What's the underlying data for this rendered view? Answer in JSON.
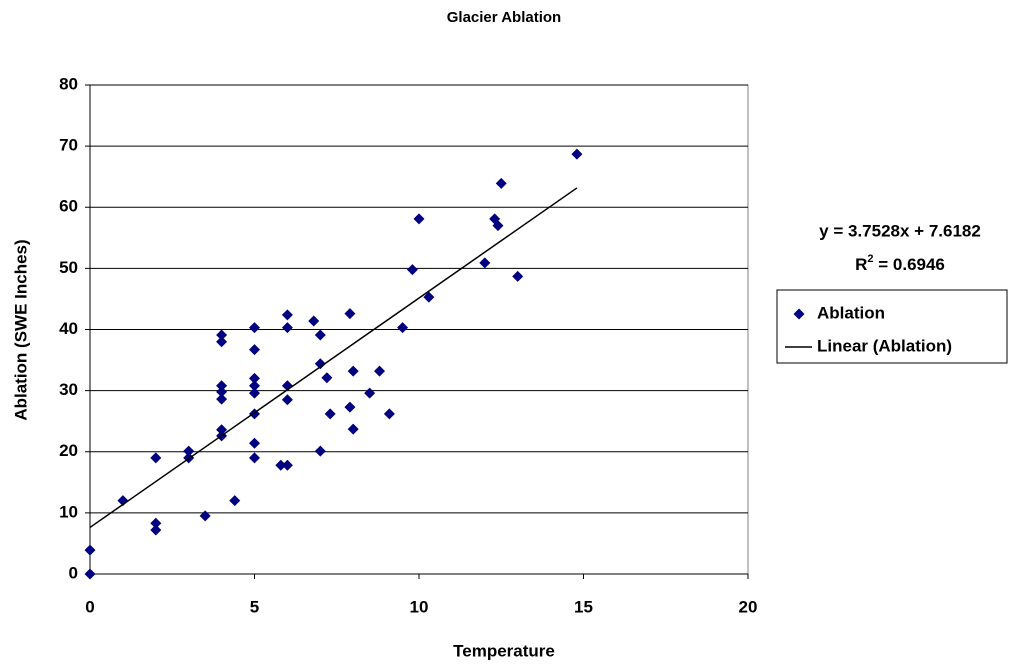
{
  "chart_data": {
    "type": "scatter",
    "title": "Glacier Ablation",
    "x_label": "Temperature",
    "y_label": "Ablation (SWE Inches)",
    "xlim": [
      0,
      20
    ],
    "xticks": [
      0,
      5,
      10,
      15,
      20
    ],
    "ylim": [
      0,
      80
    ],
    "yticks": [
      0,
      10,
      20,
      30,
      40,
      50,
      60,
      70,
      80
    ],
    "grid": true,
    "legend": "right",
    "series": [
      {
        "name": "Ablation",
        "color": "#000080",
        "x": [
          0,
          0,
          1,
          2,
          2,
          2,
          3,
          3,
          3.5,
          4,
          4,
          4,
          4,
          4,
          4,
          4,
          4.4,
          5,
          5,
          5,
          5,
          5,
          5,
          5,
          5,
          5.8,
          6,
          6,
          6,
          6,
          6,
          6.8,
          7,
          7,
          7,
          7.2,
          7.3,
          7.9,
          7.9,
          8,
          8,
          8.5,
          8.8,
          9.1,
          9.5,
          9.8,
          10,
          10.3,
          12,
          12.3,
          12.4,
          12.5,
          13,
          14.8
        ],
        "values": [
          0,
          3.9,
          12,
          8.3,
          7.2,
          19,
          20.1,
          19,
          9.5,
          39.1,
          38,
          30.8,
          29.8,
          28.6,
          23.6,
          22.6,
          12,
          40.3,
          36.7,
          32,
          30.8,
          29.6,
          26.2,
          21.4,
          19,
          17.8,
          42.4,
          40.3,
          30.8,
          28.5,
          17.8,
          41.4,
          39.1,
          34.4,
          20.1,
          32.1,
          26.2,
          42.6,
          27.3,
          33.2,
          23.7,
          29.6,
          33.2,
          26.2,
          40.3,
          49.8,
          58.1,
          45.3,
          50.9,
          58.1,
          57,
          63.9,
          48.7,
          68.7
        ]
      }
    ],
    "trendline": {
      "name": "Linear (Ablation)",
      "color": "#000000",
      "slope": 3.7528,
      "intercept": 7.6182,
      "equation_label": "y = 3.7528x + 7.6182",
      "r2_label": {
        "base": "R",
        "sup": "2",
        "rest": " = 0.6946"
      }
    }
  }
}
